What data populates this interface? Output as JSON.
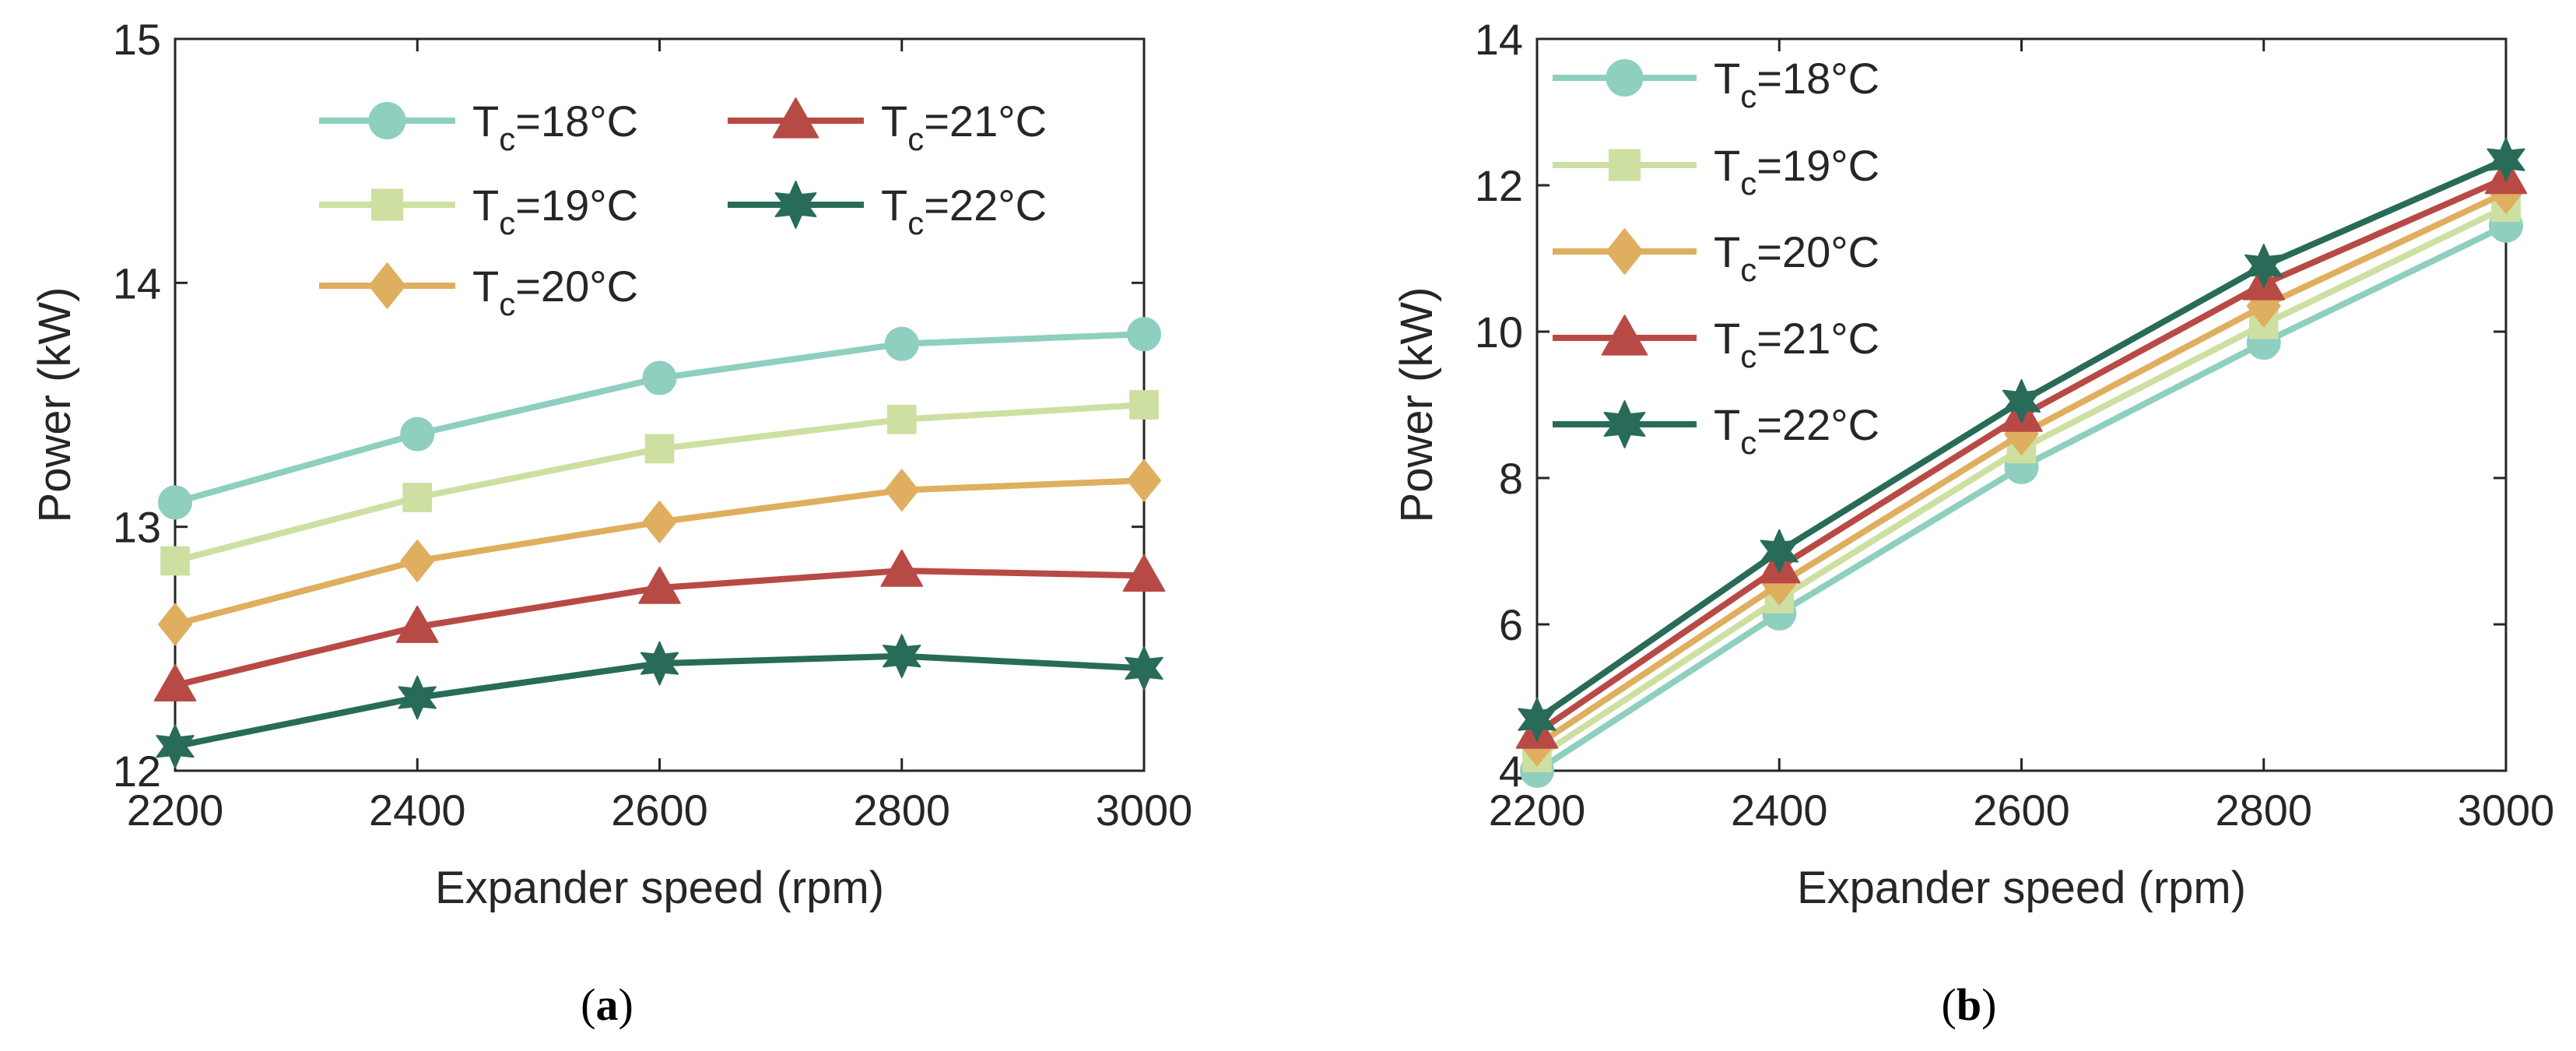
{
  "chart_data": [
    {
      "type": "line",
      "panel": "a",
      "caption": {
        "open": "(",
        "letter": "a",
        "close": ")"
      },
      "xlabel": "Expander speed (rpm)",
      "ylabel": "Power (kW)",
      "x": [
        2200,
        2400,
        2600,
        2800,
        3000
      ],
      "xlim": [
        2200,
        3000
      ],
      "ylim": [
        12,
        15
      ],
      "xticks": [
        2200,
        2400,
        2600,
        2800,
        3000
      ],
      "yticks": [
        12,
        13,
        14,
        15
      ],
      "legend_layout": "two-column",
      "series": [
        {
          "name": "Tc=18°C",
          "symbol": "T",
          "sub": "c",
          "rest": "=18°C",
          "marker": "circle",
          "color": "#8ecfbf",
          "values": [
            13.1,
            13.38,
            13.61,
            13.75,
            13.79
          ]
        },
        {
          "name": "Tc=19°C",
          "symbol": "T",
          "sub": "c",
          "rest": "=19°C",
          "marker": "square",
          "color": "#cde0a2",
          "values": [
            12.86,
            13.12,
            13.32,
            13.44,
            13.5
          ]
        },
        {
          "name": "Tc=20°C",
          "symbol": "T",
          "sub": "c",
          "rest": "=20°C",
          "marker": "diamond",
          "color": "#dfae5e",
          "values": [
            12.6,
            12.86,
            13.02,
            13.15,
            13.19
          ]
        },
        {
          "name": "Tc=21°C",
          "symbol": "T",
          "sub": "c",
          "rest": "=21°C",
          "marker": "triangle",
          "color": "#b84a45",
          "values": [
            12.35,
            12.59,
            12.75,
            12.82,
            12.8
          ]
        },
        {
          "name": "Tc=22°C",
          "symbol": "T",
          "sub": "c",
          "rest": "=22°C",
          "marker": "star",
          "color": "#286b58",
          "values": [
            12.1,
            12.3,
            12.44,
            12.47,
            12.42
          ]
        }
      ]
    },
    {
      "type": "line",
      "panel": "b",
      "caption": {
        "open": "(",
        "letter": "b",
        "close": ")"
      },
      "xlabel": "Expander speed (rpm)",
      "ylabel": "Power (kW)",
      "x": [
        2200,
        2400,
        2600,
        2800,
        3000
      ],
      "xlim": [
        2200,
        3000
      ],
      "ylim": [
        4,
        14
      ],
      "xticks": [
        2200,
        2400,
        2600,
        2800,
        3000
      ],
      "yticks": [
        4,
        6,
        8,
        10,
        12,
        14
      ],
      "legend_layout": "one-column",
      "series": [
        {
          "name": "Tc=18°C",
          "symbol": "T",
          "sub": "c",
          "rest": "=18°C",
          "marker": "circle",
          "color": "#8ecfbf",
          "values": [
            4.0,
            6.15,
            8.15,
            9.85,
            11.45
          ]
        },
        {
          "name": "Tc=19°C",
          "symbol": "T",
          "sub": "c",
          "rest": "=19°C",
          "marker": "square",
          "color": "#cde0a2",
          "values": [
            4.18,
            6.35,
            8.4,
            10.1,
            11.7
          ]
        },
        {
          "name": "Tc=20°C",
          "symbol": "T",
          "sub": "c",
          "rest": "=20°C",
          "marker": "diamond",
          "color": "#dfae5e",
          "values": [
            4.35,
            6.55,
            8.6,
            10.35,
            11.9
          ]
        },
        {
          "name": "Tc=21°C",
          "symbol": "T",
          "sub": "c",
          "rest": "=21°C",
          "marker": "triangle",
          "color": "#b84a45",
          "values": [
            4.52,
            6.78,
            8.85,
            10.65,
            12.1
          ]
        },
        {
          "name": "Tc=22°C",
          "symbol": "T",
          "sub": "c",
          "rest": "=22°C",
          "marker": "star",
          "color": "#286b58",
          "values": [
            4.7,
            7.0,
            9.05,
            10.9,
            12.35
          ]
        }
      ]
    }
  ]
}
